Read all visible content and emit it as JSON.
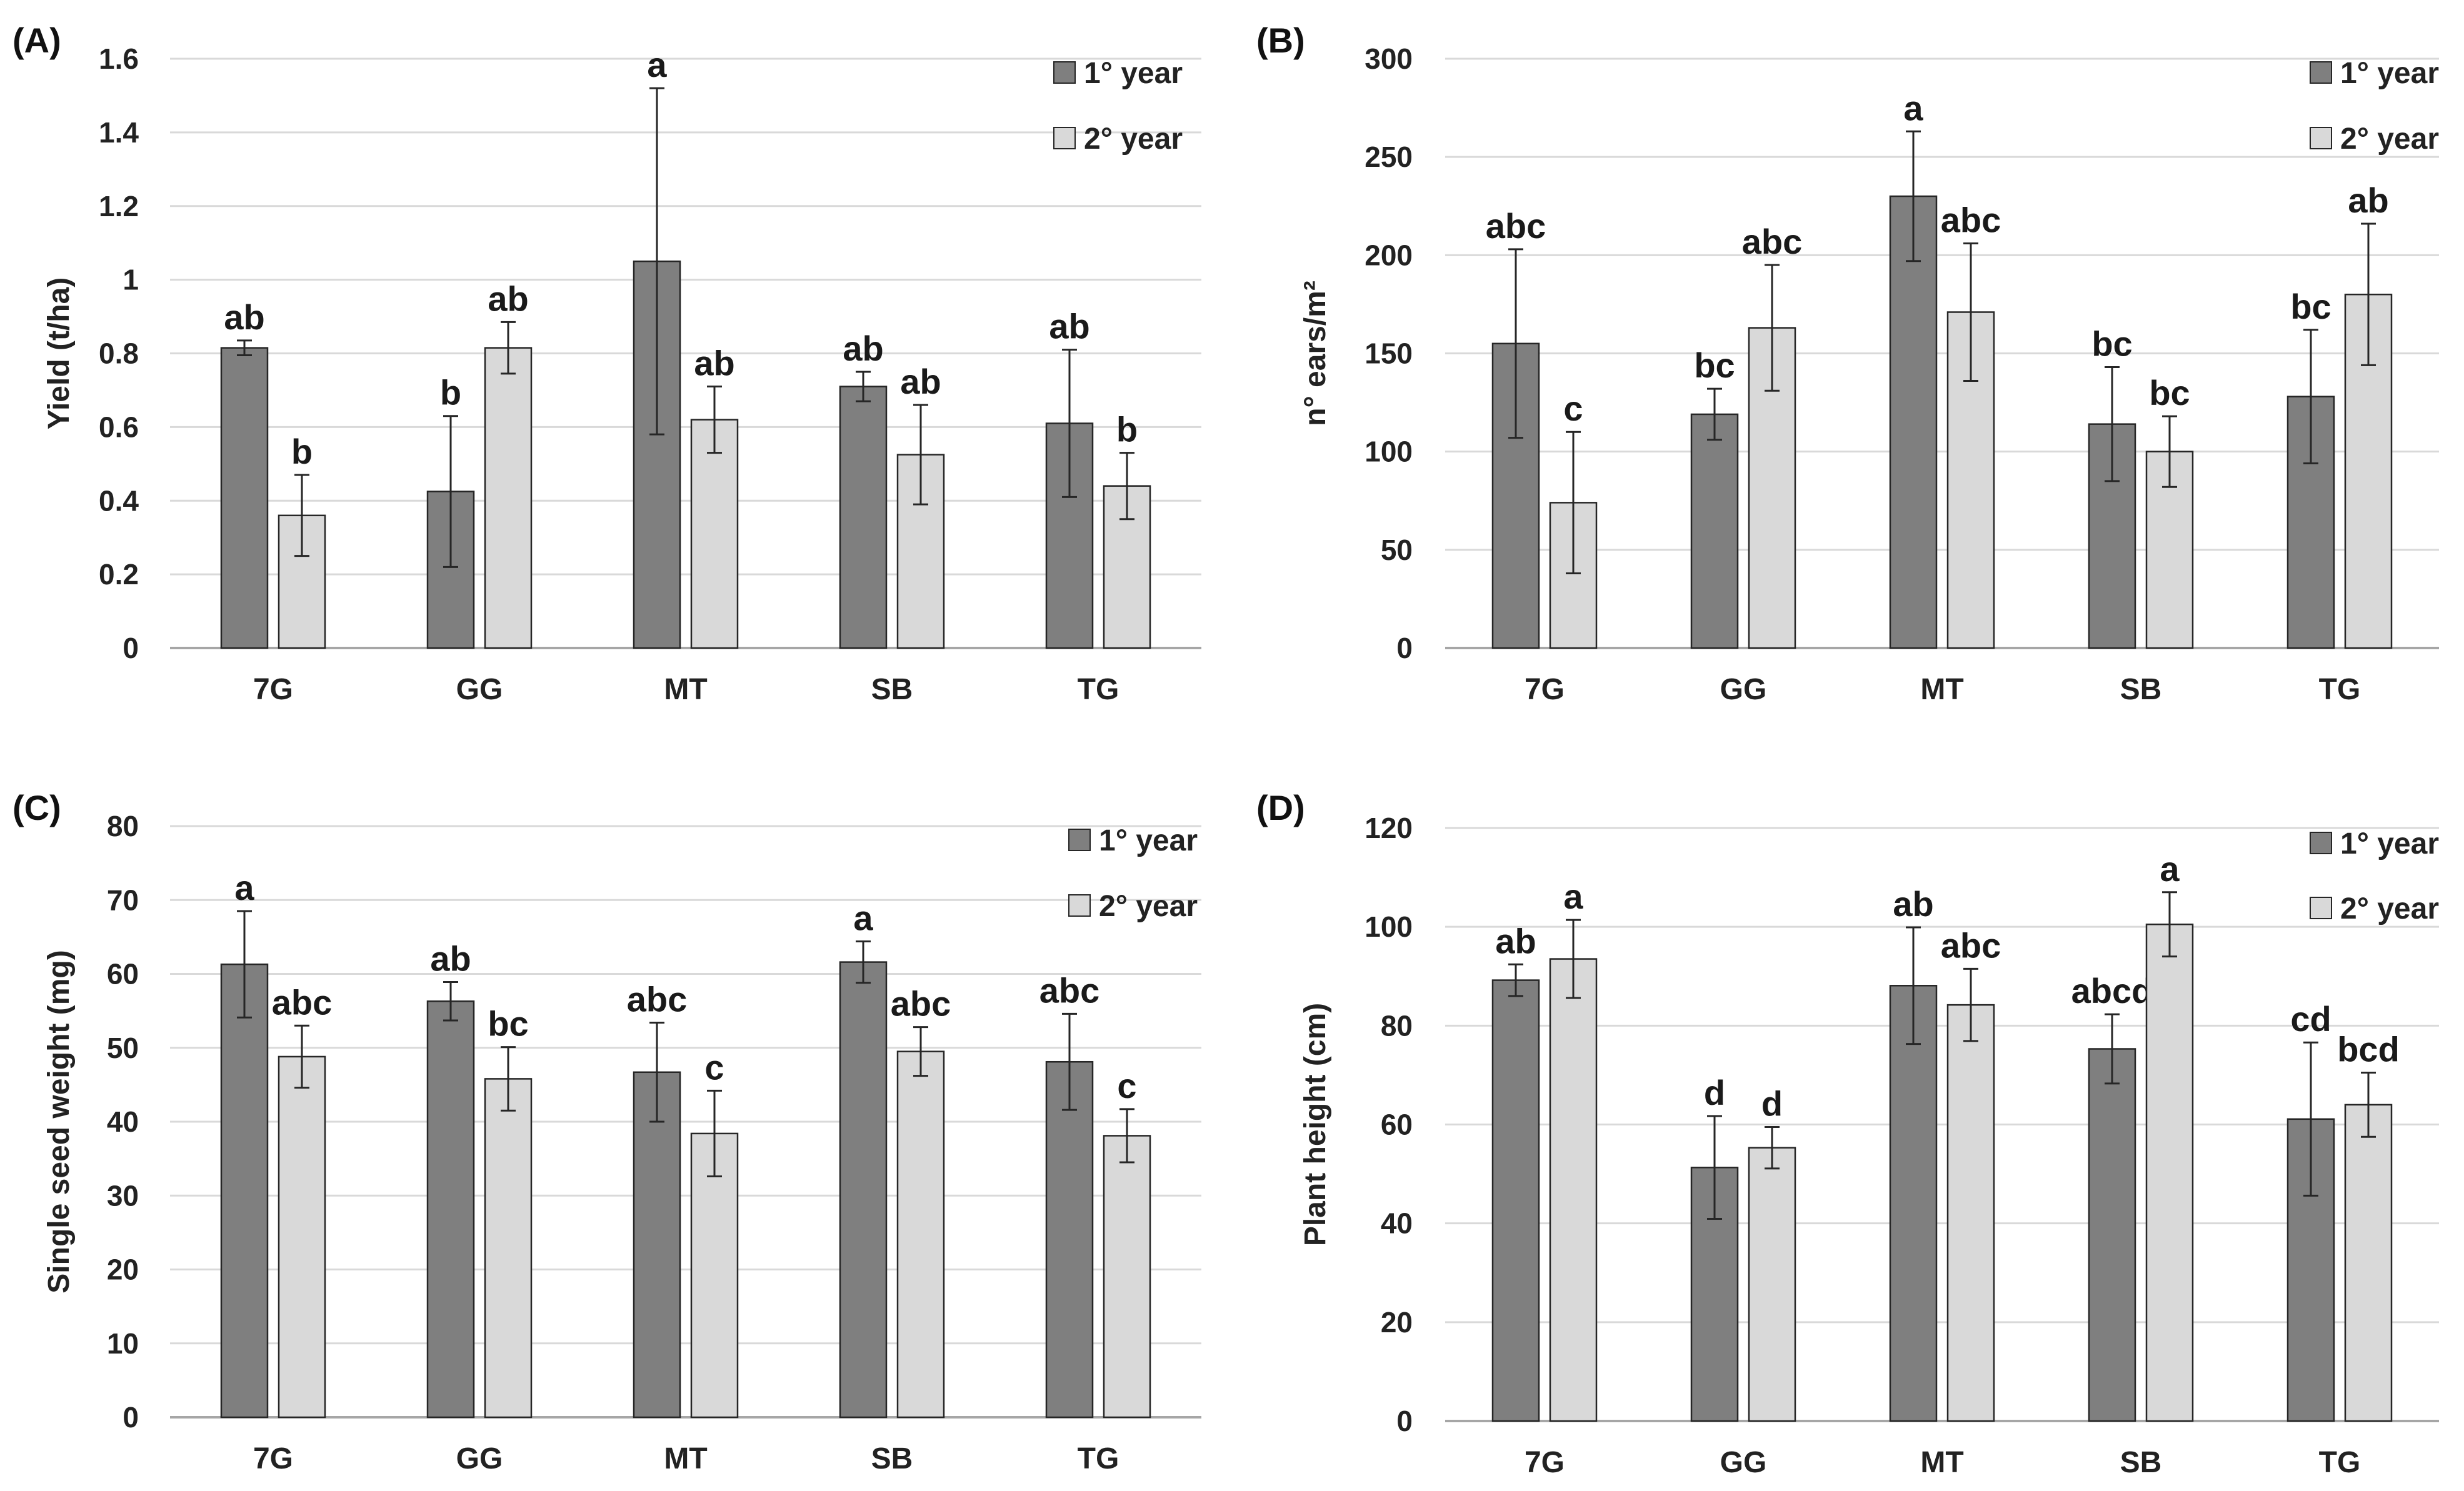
{
  "figure": {
    "colors": {
      "year1": "#7f7f7f",
      "year2": "#d9d9d9",
      "grid": "#d9d9d9",
      "axis": "#a6a6a6",
      "bar_stroke": "#262626",
      "error": "#262626"
    }
  },
  "chart_data": [
    {
      "type": "bar",
      "panel_label": "(A)",
      "ylabel": "Yield (t/ha)",
      "ylim": [
        0,
        1.6
      ],
      "yticks": [
        "0",
        "0.2",
        "0.4",
        "0.6",
        "0.8",
        "1",
        "1.2",
        "1.4",
        "1.6"
      ],
      "categories": [
        "7G",
        "GG",
        "MT",
        "SB",
        "TG"
      ],
      "legend_position": "top-right",
      "series": [
        {
          "name": "1° year",
          "values": [
            0.815,
            0.425,
            1.05,
            0.71,
            0.61
          ],
          "errors": [
            0.02,
            0.205,
            0.47,
            0.04,
            0.2
          ],
          "letters": [
            "ab",
            "b",
            "a",
            "ab",
            "ab"
          ]
        },
        {
          "name": "2° year",
          "values": [
            0.36,
            0.815,
            0.62,
            0.525,
            0.44
          ],
          "errors": [
            0.11,
            0.07,
            0.09,
            0.135,
            0.09
          ],
          "letters": [
            "b",
            "ab",
            "ab",
            "ab",
            "b"
          ]
        }
      ]
    },
    {
      "type": "bar",
      "panel_label": "(B)",
      "ylabel": "n° ears/m²",
      "ylim": [
        0,
        300
      ],
      "yticks": [
        "0",
        "50",
        "100",
        "150",
        "200",
        "250",
        "300"
      ],
      "categories": [
        "7G",
        "GG",
        "MT",
        "SB",
        "TG"
      ],
      "legend_position": "top-right",
      "series": [
        {
          "name": "1° year",
          "values": [
            155,
            119,
            230,
            114,
            128
          ],
          "errors": [
            48,
            13,
            33,
            29,
            34
          ],
          "letters": [
            "abc",
            "bc",
            "a",
            "bc",
            "bc"
          ]
        },
        {
          "name": "2° year",
          "values": [
            74,
            163,
            171,
            100,
            180
          ],
          "errors": [
            36,
            32,
            35,
            18,
            36
          ],
          "letters": [
            "c",
            "abc",
            "abc",
            "bc",
            "ab"
          ]
        }
      ]
    },
    {
      "type": "bar",
      "panel_label": "(C)",
      "ylabel": "Single seed weight (mg)",
      "ylim": [
        0,
        80
      ],
      "yticks": [
        "0",
        "10",
        "20",
        "30",
        "40",
        "50",
        "60",
        "70",
        "80"
      ],
      "categories": [
        "7G",
        "GG",
        "MT",
        "SB",
        "TG"
      ],
      "legend_position": "top-right",
      "series": [
        {
          "name": "1° year",
          "values": [
            61.3,
            56.3,
            46.7,
            61.6,
            48.1
          ],
          "errors": [
            7.2,
            2.6,
            6.7,
            2.8,
            6.5
          ],
          "letters": [
            "a",
            "ab",
            "abc",
            "a",
            "abc"
          ]
        },
        {
          "name": "2° year",
          "values": [
            48.8,
            45.8,
            38.4,
            49.5,
            38.1
          ],
          "errors": [
            4.2,
            4.3,
            5.8,
            3.3,
            3.6
          ],
          "letters": [
            "abc",
            "bc",
            "c",
            "abc",
            "c"
          ]
        }
      ]
    },
    {
      "type": "bar",
      "panel_label": "(D)",
      "ylabel": "Plant height (cm)",
      "ylim": [
        0,
        120
      ],
      "yticks": [
        "0",
        "20",
        "40",
        "60",
        "80",
        "100",
        "120"
      ],
      "categories": [
        "7G",
        "GG",
        "MT",
        "SB",
        "TG"
      ],
      "legend_position": "top-right",
      "series": [
        {
          "name": "1° year",
          "values": [
            89.2,
            51.3,
            88.1,
            75.3,
            61.1
          ],
          "errors": [
            3.2,
            10.4,
            11.8,
            7.0,
            15.5
          ],
          "letters": [
            "ab",
            "d",
            "ab",
            "abcd",
            "cd"
          ]
        },
        {
          "name": "2° year",
          "values": [
            93.5,
            55.3,
            84.2,
            100.5,
            64.0
          ],
          "errors": [
            7.9,
            4.2,
            7.3,
            6.5,
            6.5
          ],
          "letters": [
            "a",
            "d",
            "abc",
            "a",
            "bcd"
          ]
        }
      ]
    }
  ]
}
